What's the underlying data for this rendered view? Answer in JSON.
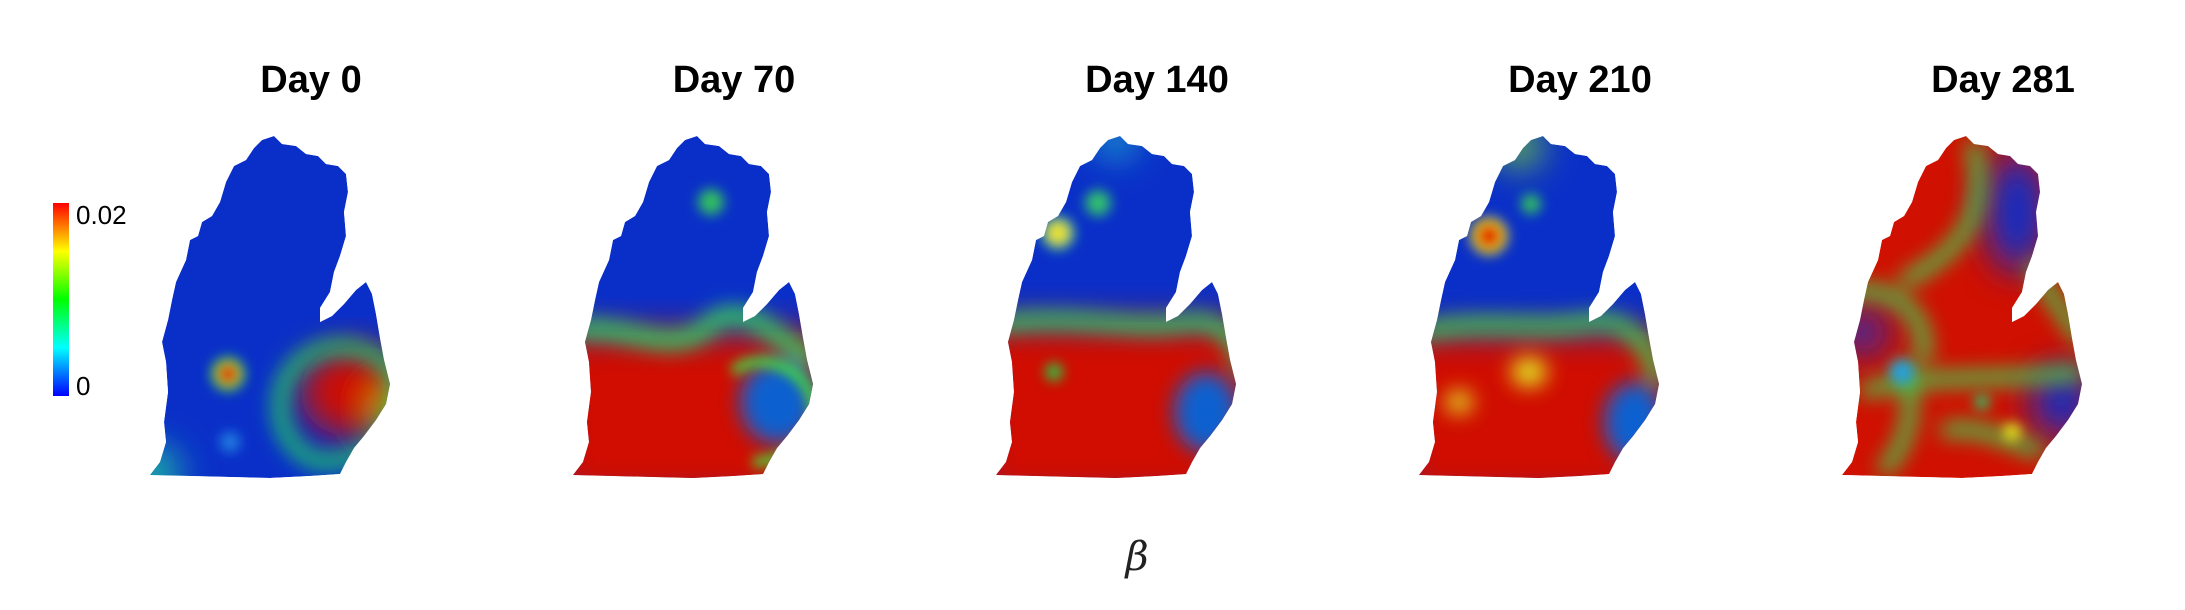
{
  "figure": {
    "panels": [
      {
        "title": "Day 0",
        "colors": {
          "base": "#0a2fc8",
          "hot": "#d01000"
        }
      },
      {
        "title": "Day 70",
        "colors": {
          "base": "#0a2fc8",
          "hot": "#d01000"
        }
      },
      {
        "title": "Day 140",
        "colors": {
          "base": "#0a2fc8",
          "hot": "#d01000"
        }
      },
      {
        "title": "Day 210",
        "colors": {
          "base": "#0a2fc8",
          "hot": "#d01000"
        }
      },
      {
        "title": "Day 281",
        "colors": {
          "base": "#0a2fc8",
          "hot": "#d01000"
        }
      }
    ],
    "colorbar": {
      "max_label": "0.02",
      "min_label": "0",
      "stops": [
        "#0000ff",
        "#00ffff",
        "#00ff00",
        "#ffff00",
        "#ff0000"
      ]
    },
    "variable_label": "β"
  }
}
